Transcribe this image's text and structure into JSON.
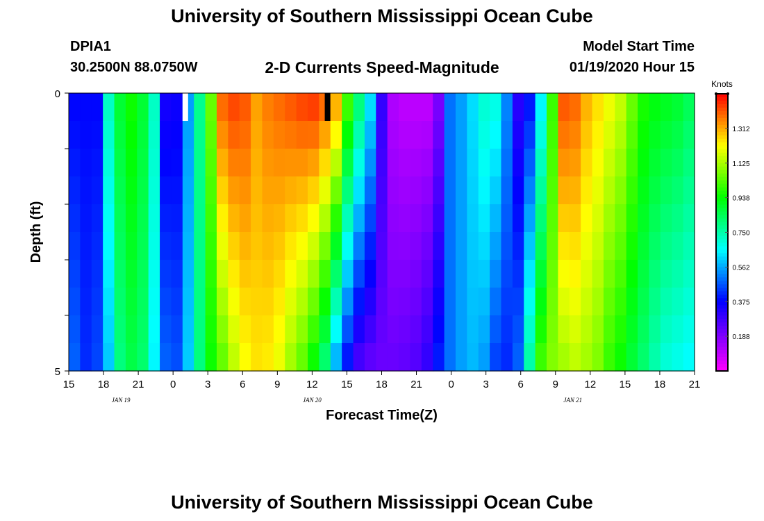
{
  "page": {
    "title_top": "University of Southern Mississippi Ocean Cube",
    "title_bottom": "University of Southern Mississippi Ocean Cube",
    "station": "DPIA1",
    "coords": "30.2500N 88.0750W",
    "subtitle": "2-D Currents Speed-Magnitude",
    "model_label": "Model Start Time",
    "model_time": "01/19/2020 Hour 15"
  },
  "chart_data": {
    "type": "heatmap",
    "title": "2-D Currents Speed-Magnitude",
    "xlabel": "Forecast Time(Z)",
    "ylabel": "Depth (ft)",
    "x_ticks": [
      "15",
      "18",
      "21",
      "0",
      "3",
      "6",
      "9",
      "12",
      "15",
      "18",
      "21",
      "0",
      "3",
      "6",
      "9",
      "12",
      "15",
      "18",
      "21"
    ],
    "date_labels": [
      {
        "label": "JAN 19",
        "at_tick": 1.5
      },
      {
        "label": "JAN 20",
        "at_tick": 7
      },
      {
        "label": "JAN 21",
        "at_tick": 14.5
      }
    ],
    "y_tick_labels": [
      "0",
      "5"
    ],
    "ylim": [
      0,
      5
    ],
    "colorbar": {
      "label": "Knots",
      "ticks": [
        "1.312",
        "1.125",
        "0.938",
        "0.750",
        "0.562",
        "0.375",
        "0.188"
      ],
      "range": [
        0.0,
        1.5
      ]
    },
    "depth_layers": 10,
    "hours": 55,
    "markers": [
      {
        "hour": 10,
        "color": "#ffffff"
      },
      {
        "hour": 22.5,
        "color": "#000000"
      }
    ],
    "surface_speed_knots": [
      0.38,
      0.38,
      0.38,
      0.72,
      0.88,
      0.95,
      0.88,
      0.72,
      0.35,
      0.36,
      0.55,
      0.78,
      1.05,
      1.38,
      1.42,
      1.4,
      1.32,
      1.36,
      1.38,
      1.4,
      1.42,
      1.43,
      1.38,
      1.3,
      1.0,
      0.8,
      0.62,
      0.3,
      0.12,
      0.1,
      0.1,
      0.1,
      0.2,
      0.5,
      0.55,
      0.62,
      0.7,
      0.68,
      0.52,
      0.32,
      0.4,
      0.65,
      1.0,
      1.4,
      1.38,
      1.3,
      1.25,
      1.2,
      1.15,
      1.05,
      0.96,
      0.92,
      0.9,
      0.88,
      0.84
    ],
    "bottom_speed_knots": [
      0.48,
      0.42,
      0.45,
      0.6,
      0.8,
      0.86,
      0.82,
      0.65,
      0.48,
      0.46,
      0.6,
      0.8,
      0.95,
      1.05,
      1.15,
      1.22,
      1.25,
      1.24,
      1.2,
      1.12,
      1.05,
      0.95,
      0.82,
      0.58,
      0.4,
      0.28,
      0.24,
      0.22,
      0.22,
      0.23,
      0.25,
      0.3,
      0.4,
      0.5,
      0.55,
      0.58,
      0.55,
      0.45,
      0.42,
      0.48,
      0.75,
      1.0,
      1.08,
      1.12,
      1.15,
      1.12,
      1.08,
      1.0,
      0.95,
      0.88,
      0.82,
      0.75,
      0.7,
      0.68,
      0.66
    ]
  }
}
